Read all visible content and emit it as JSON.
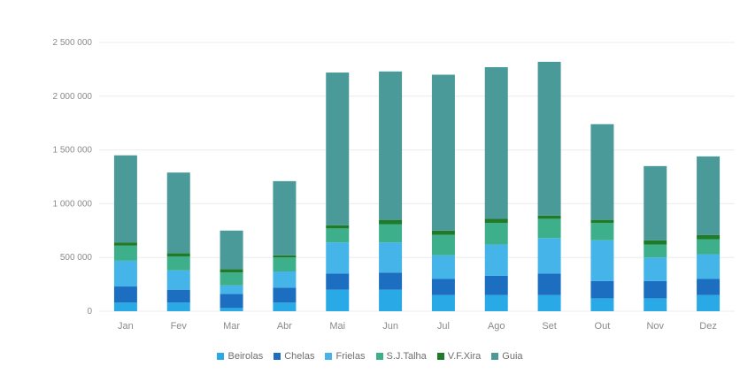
{
  "chart_data": {
    "type": "bar",
    "stacked": true,
    "title": "",
    "xlabel": "",
    "ylabel": "",
    "ylim": [
      0,
      2500000
    ],
    "y_ticks": [
      {
        "value": 0,
        "label": "0"
      },
      {
        "value": 500000,
        "label": "500 000"
      },
      {
        "value": 1000000,
        "label": "1 000 000"
      },
      {
        "value": 1500000,
        "label": "1 500 000"
      },
      {
        "value": 2000000,
        "label": "2 000 000"
      },
      {
        "value": 2500000,
        "label": "2 500 000"
      }
    ],
    "grid": true,
    "legend_position": "bottom",
    "categories": [
      "Jan",
      "Fev",
      "Mar",
      "Abr",
      "Mai",
      "Jun",
      "Jul",
      "Ago",
      "Set",
      "Out",
      "Nov",
      "Dez"
    ],
    "series": [
      {
        "name": "Beirolas",
        "color": "#29a9e6",
        "values": [
          80000,
          80000,
          30000,
          80000,
          200000,
          200000,
          150000,
          150000,
          150000,
          120000,
          120000,
          150000
        ]
      },
      {
        "name": "Chelas",
        "color": "#1c6fc0",
        "values": [
          150000,
          120000,
          130000,
          140000,
          150000,
          160000,
          150000,
          180000,
          200000,
          160000,
          160000,
          150000
        ]
      },
      {
        "name": "Frielas",
        "color": "#45b4e8",
        "values": [
          240000,
          180000,
          80000,
          150000,
          290000,
          280000,
          220000,
          290000,
          330000,
          380000,
          220000,
          230000
        ]
      },
      {
        "name": "S.J.Talha",
        "color": "#3daf8a",
        "values": [
          140000,
          130000,
          120000,
          130000,
          130000,
          170000,
          190000,
          200000,
          180000,
          160000,
          120000,
          140000
        ]
      },
      {
        "name": "V.F.Xira",
        "color": "#1f7a2a",
        "values": [
          30000,
          30000,
          30000,
          20000,
          30000,
          40000,
          40000,
          40000,
          30000,
          30000,
          40000,
          40000
        ]
      },
      {
        "name": "Guia",
        "color": "#4a9a9a",
        "values": [
          810000,
          750000,
          360000,
          690000,
          1420000,
          1380000,
          1450000,
          1410000,
          1430000,
          890000,
          690000,
          730000
        ]
      }
    ]
  }
}
